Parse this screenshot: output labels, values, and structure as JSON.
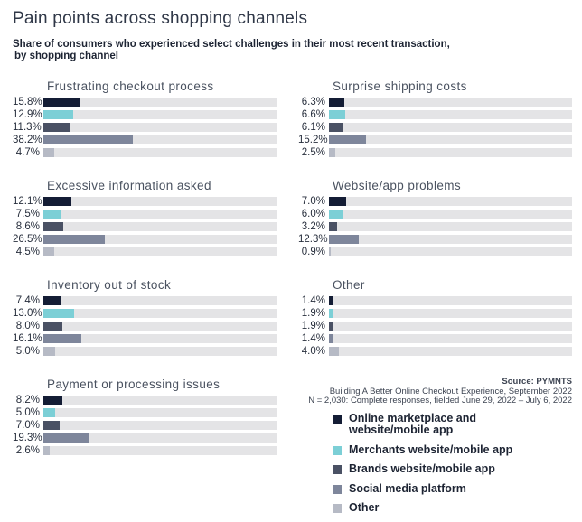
{
  "header": {
    "title": "Pain points across shopping channels",
    "subtitle_line1": "Share of consumers who experienced select challenges in their most recent transaction,",
    "subtitle_line2": "by shopping channel"
  },
  "chart_data": {
    "type": "bar",
    "orientation": "horizontal",
    "unit": "%",
    "xlim": [
      0,
      100
    ],
    "track_color": "#e4e4e6",
    "series_labels": [
      "Online marketplace and website/mobile app",
      "Merchants website/mobile app",
      "Brands website/mobile app",
      "Social media platform",
      "Other"
    ],
    "colors": [
      "#141d35",
      "#7ccfd6",
      "#4a5164",
      "#7e869b",
      "#b6bac5"
    ],
    "charts": [
      {
        "title": "Frustrating checkout process",
        "values": [
          15.8,
          12.9,
          11.3,
          38.2,
          4.7
        ],
        "value_labels": [
          "15.8%",
          "12.9%",
          "11.3%",
          "38.2%",
          "4.7%"
        ]
      },
      {
        "title": "Surprise shipping costs",
        "values": [
          6.3,
          6.6,
          6.1,
          15.2,
          2.5
        ],
        "value_labels": [
          "6.3%",
          "6.6%",
          "6.1%",
          "15.2%",
          "2.5%"
        ]
      },
      {
        "title": "Excessive information asked",
        "values": [
          12.1,
          7.5,
          8.6,
          26.5,
          4.5
        ],
        "value_labels": [
          "12.1%",
          "7.5%",
          "8.6%",
          "26.5%",
          "4.5%"
        ]
      },
      {
        "title": "Website/app problems",
        "values": [
          7.0,
          6.0,
          3.2,
          12.3,
          0.9
        ],
        "value_labels": [
          "7.0%",
          "6.0%",
          "3.2%",
          "12.3%",
          "0.9%"
        ]
      },
      {
        "title": "Inventory out of stock",
        "values": [
          7.4,
          13.0,
          8.0,
          16.1,
          5.0
        ],
        "value_labels": [
          "7.4%",
          "13.0%",
          "8.0%",
          "16.1%",
          "5.0%"
        ]
      },
      {
        "title": "Other",
        "values": [
          1.4,
          1.9,
          1.9,
          1.4,
          4.0
        ],
        "value_labels": [
          "1.4%",
          "1.9%",
          "1.9%",
          "1.4%",
          "4.0%"
        ]
      },
      {
        "title": "Payment or processing issues",
        "values": [
          8.2,
          5.0,
          7.0,
          19.3,
          2.6
        ],
        "value_labels": [
          "8.2%",
          "5.0%",
          "7.0%",
          "19.3%",
          "2.6%"
        ]
      }
    ]
  },
  "source": {
    "line1": "Source: PYMNTS",
    "line2": "Building A Better Online Checkout Experience, September 2022",
    "line3": "N = 2,030: Complete responses, fielded June 29, 2022 – July 6, 2022"
  },
  "legend": {
    "items": [
      {
        "label": "Online marketplace and website/mobile app",
        "color": "#141d35"
      },
      {
        "label": "Merchants website/mobile app",
        "color": "#7ccfd6"
      },
      {
        "label": "Brands website/mobile app",
        "color": "#4a5164"
      },
      {
        "label": "Social media platform",
        "color": "#7e869b"
      },
      {
        "label": "Other",
        "color": "#b6bac5"
      }
    ]
  }
}
